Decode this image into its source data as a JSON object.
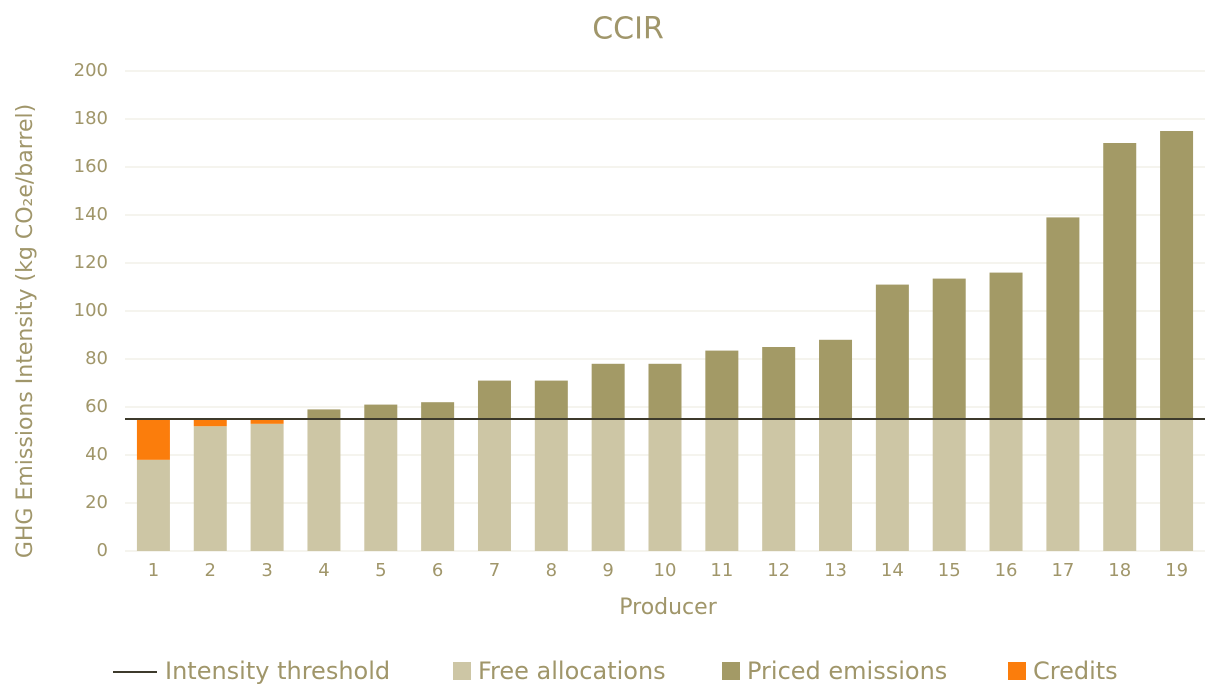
{
  "chart_data": {
    "type": "stacked_bar",
    "title": "CCIR",
    "x_label": "Producer",
    "y_label": "GHG Emissions Intensity (kg CO₂e/barrel)",
    "categories": [
      "1",
      "2",
      "3",
      "4",
      "5",
      "6",
      "7",
      "8",
      "9",
      "10",
      "11",
      "12",
      "13",
      "14",
      "15",
      "16",
      "17",
      "18",
      "19"
    ],
    "series": [
      {
        "name": "Free allocations",
        "color": "#cdc6a5",
        "values": [
          38,
          52,
          53,
          55,
          55,
          55,
          55,
          55,
          55,
          55,
          55,
          55,
          55,
          55,
          55,
          55,
          55,
          55,
          55
        ]
      },
      {
        "name": "Priced emissions",
        "color": "#a39a66",
        "values": [
          0,
          0,
          0,
          4,
          6,
          7,
          16,
          16,
          23,
          23,
          28.5,
          30,
          33,
          56,
          58.5,
          61,
          84,
          115,
          120
        ]
      },
      {
        "name": "Credits",
        "color": "#fb7d0c",
        "values": [
          17,
          3,
          2,
          0,
          0,
          0,
          0,
          0,
          0,
          0,
          0,
          0,
          0,
          0,
          0,
          0,
          0,
          0,
          0
        ]
      }
    ],
    "threshold": {
      "name": "Intensity threshold",
      "value": 55,
      "color": "#3d3a2c"
    },
    "ylim": [
      0,
      200
    ],
    "yticks": [
      0,
      20,
      40,
      60,
      80,
      100,
      120,
      140,
      160,
      180,
      200
    ],
    "grid": true
  }
}
